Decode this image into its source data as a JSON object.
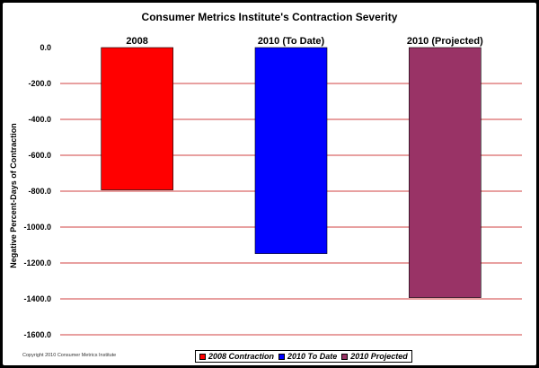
{
  "copyright": "Copyright 2010 Consumer Metrics Institute",
  "chart_data": {
    "type": "bar",
    "title": "Consumer Metrics Institute's Contraction Severity",
    "xlabel": "",
    "ylabel": "Negative Percent-Days of Contraction",
    "categories": [
      "2008",
      "2010 (To Date)",
      "2010 (Projected)"
    ],
    "values": [
      -793,
      -1148,
      -1393
    ],
    "colors": [
      "#ff0000",
      "#0000ff",
      "#993366"
    ],
    "ylim": [
      -1600,
      0
    ],
    "yticks": [
      "0.0",
      "-200.0",
      "-400.0",
      "-600.0",
      "-800.0",
      "-1000.0",
      "-1200.0",
      "-1400.0",
      "-1600.0"
    ],
    "grid": true,
    "grid_color": "#c00000",
    "legend": [
      {
        "label": "2008 Contraction",
        "color": "#ff0000"
      },
      {
        "label": "2010 To Date",
        "color": "#0000ff"
      },
      {
        "label": "2010 Projected",
        "color": "#993366"
      }
    ],
    "legend_position": "bottom"
  }
}
